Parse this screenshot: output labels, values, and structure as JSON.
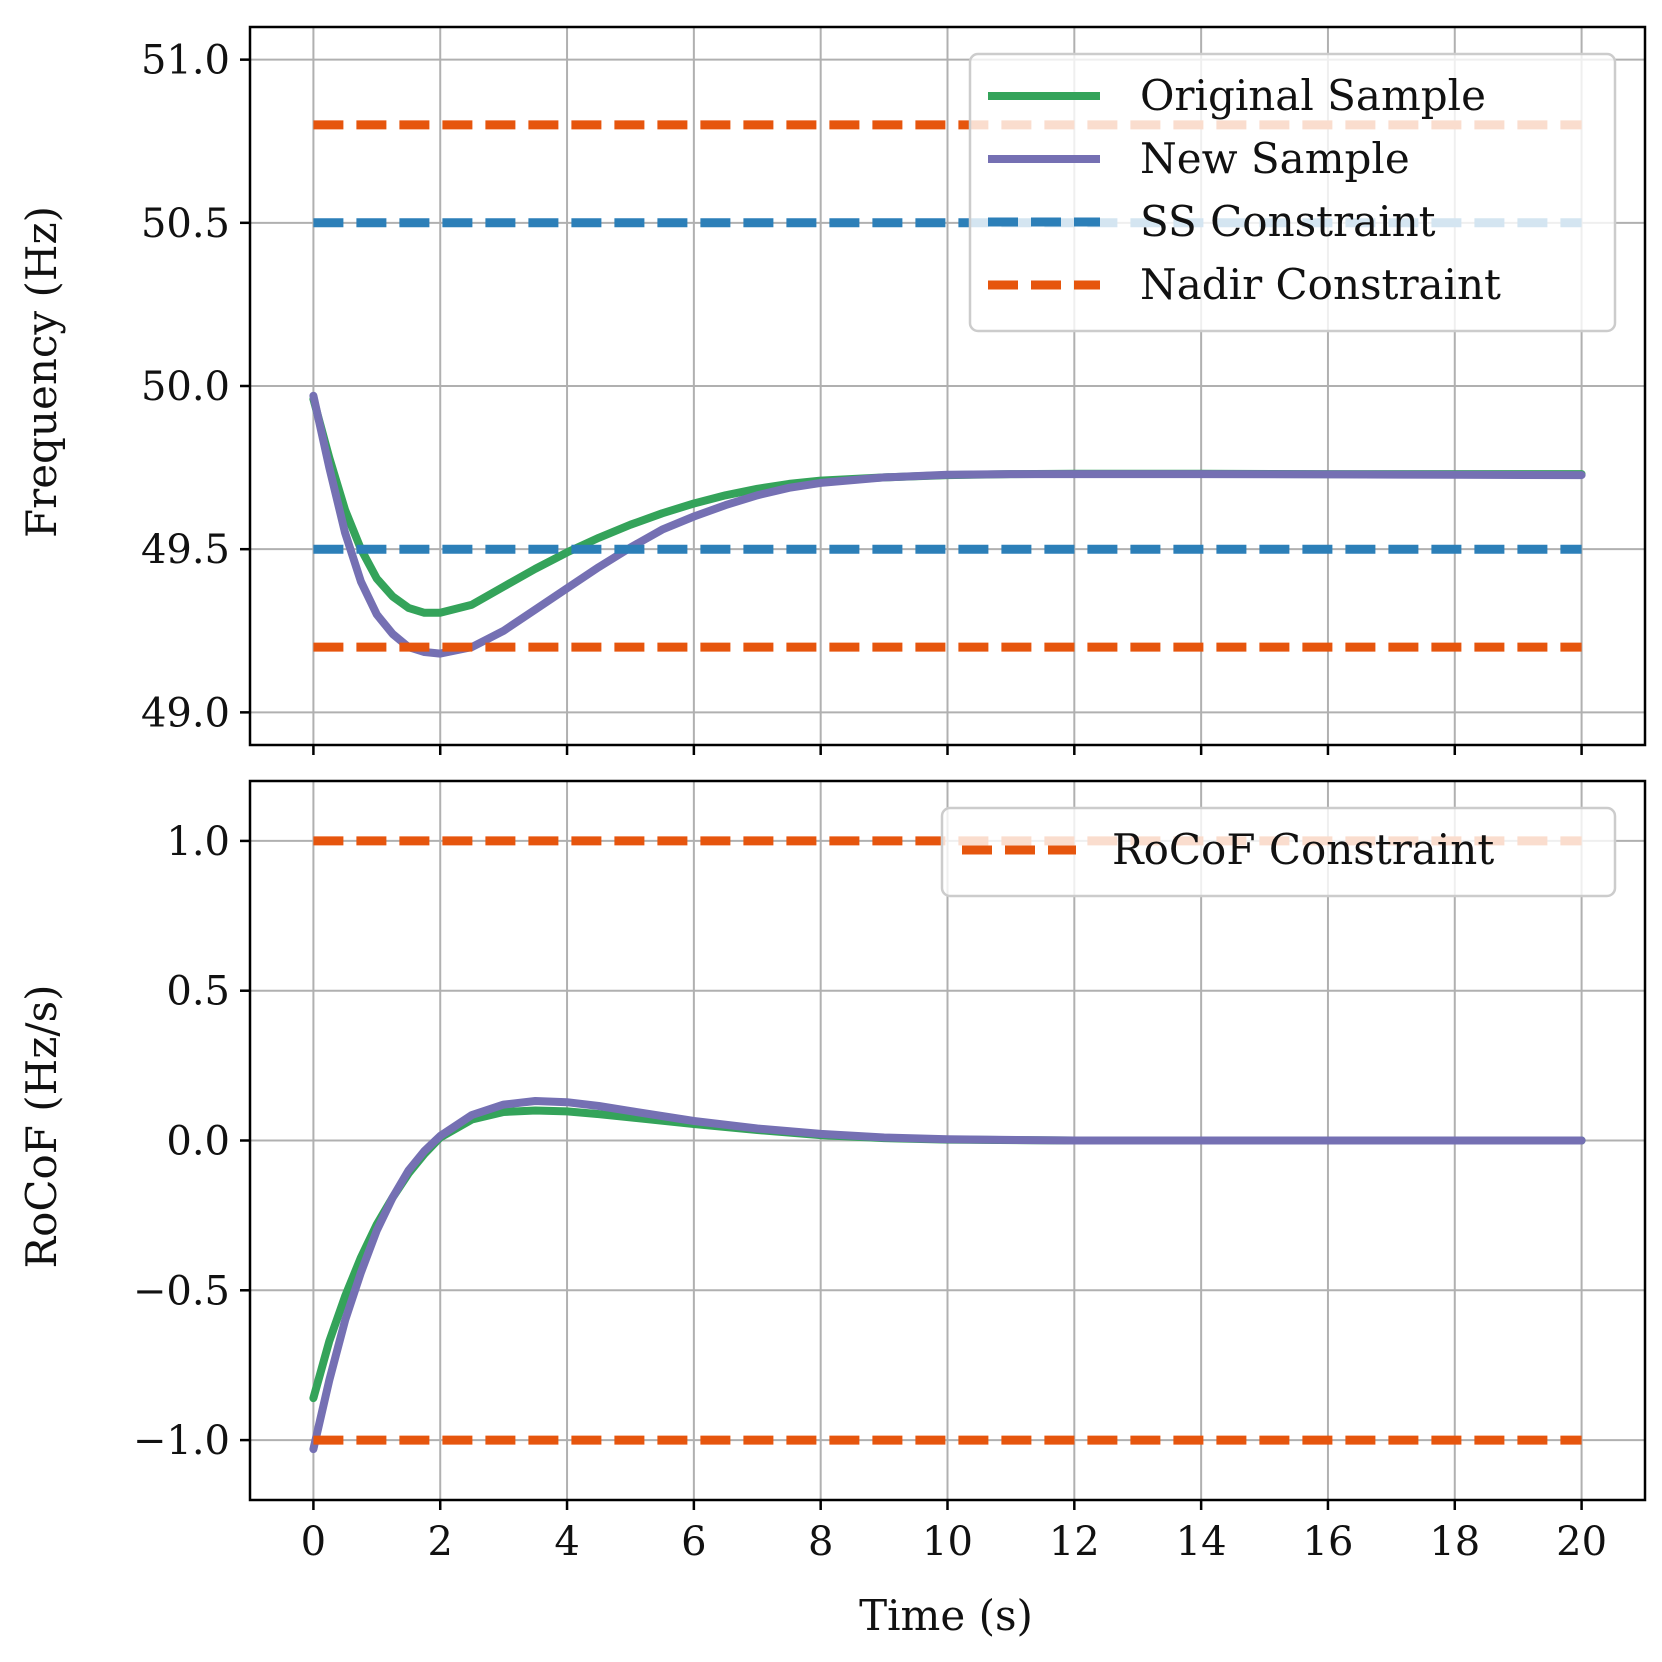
{
  "chart_data": [
    {
      "type": "line",
      "id": "frequency",
      "title": "",
      "xlabel": "",
      "ylabel": "Frequency (Hz)",
      "xlim": [
        -1,
        21
      ],
      "ylim": [
        48.9,
        51.1
      ],
      "xticks": [
        0,
        2,
        4,
        6,
        8,
        10,
        12,
        14,
        16,
        18,
        20
      ],
      "yticks": [
        49.0,
        49.5,
        50.0,
        50.5,
        51.0
      ],
      "ytick_labels": [
        "49.0",
        "49.5",
        "50.0",
        "50.5",
        "51.0"
      ],
      "grid": true,
      "legend_position": "top-right",
      "series": [
        {
          "name": "Original Sample",
          "style": "solid",
          "color": "#34a35a",
          "x": [
            0,
            0.25,
            0.5,
            0.75,
            1,
            1.25,
            1.5,
            1.75,
            2,
            2.5,
            3,
            3.5,
            4,
            4.5,
            5,
            5.5,
            6,
            6.5,
            7,
            7.5,
            8,
            9,
            10,
            11,
            12,
            14,
            16,
            18,
            20
          ],
          "y": [
            49.96,
            49.78,
            49.62,
            49.5,
            49.41,
            49.355,
            49.32,
            49.305,
            49.305,
            49.33,
            49.385,
            49.44,
            49.49,
            49.535,
            49.575,
            49.61,
            49.64,
            49.665,
            49.685,
            49.7,
            49.71,
            49.72,
            49.727,
            49.73,
            49.731,
            49.731,
            49.73,
            49.73,
            49.73
          ]
        },
        {
          "name": "New Sample",
          "style": "solid",
          "color": "#7570b3",
          "x": [
            0,
            0.25,
            0.5,
            0.75,
            1,
            1.25,
            1.5,
            1.75,
            2,
            2.5,
            3,
            3.5,
            4,
            4.5,
            5,
            5.5,
            6,
            6.5,
            7,
            7.5,
            8,
            9,
            10,
            11,
            12,
            14,
            16,
            18,
            20
          ],
          "y": [
            49.97,
            49.75,
            49.55,
            49.4,
            49.3,
            49.24,
            49.2,
            49.185,
            49.18,
            49.2,
            49.25,
            49.315,
            49.38,
            49.445,
            49.505,
            49.56,
            49.6,
            49.635,
            49.665,
            49.688,
            49.703,
            49.72,
            49.728,
            49.73,
            49.73,
            49.73,
            49.729,
            49.728,
            49.727
          ]
        },
        {
          "name": "SS Constraint",
          "style": "dashed",
          "color": "#2c7fb8",
          "x": [
            0,
            20
          ],
          "y": [
            49.5,
            49.5
          ],
          "y2": [
            50.5,
            50.5
          ]
        },
        {
          "name": "Nadir Constraint",
          "style": "dashed",
          "color": "#e6550d",
          "x": [
            0,
            20
          ],
          "y": [
            49.2,
            49.2
          ],
          "y2": [
            50.8,
            50.8
          ]
        }
      ]
    },
    {
      "type": "line",
      "id": "rocof",
      "title": "",
      "xlabel": "Time (s)",
      "ylabel": "RoCoF (Hz/s)",
      "xlim": [
        -1,
        21
      ],
      "ylim": [
        -1.2,
        1.2
      ],
      "xticks": [
        0,
        2,
        4,
        6,
        8,
        10,
        12,
        14,
        16,
        18,
        20
      ],
      "xtick_labels": [
        "0",
        "2",
        "4",
        "6",
        "8",
        "10",
        "12",
        "14",
        "16",
        "18",
        "20"
      ],
      "yticks": [
        -1.0,
        -0.5,
        0.0,
        0.5,
        1.0
      ],
      "ytick_labels": [
        "−1.0",
        "−0.5",
        "0.0",
        "0.5",
        "1.0"
      ],
      "grid": true,
      "legend_position": "top-right",
      "series": [
        {
          "name": "Original Sample",
          "style": "solid",
          "color": "#34a35a",
          "legend": false,
          "x": [
            0,
            0.25,
            0.5,
            0.75,
            1,
            1.25,
            1.5,
            1.75,
            2,
            2.5,
            3,
            3.5,
            4,
            4.5,
            5,
            6,
            7,
            8,
            9,
            10,
            12,
            14,
            16,
            18,
            20
          ],
          "y": [
            -0.86,
            -0.67,
            -0.52,
            -0.39,
            -0.28,
            -0.19,
            -0.11,
            -0.045,
            0.01,
            0.07,
            0.095,
            0.1,
            0.097,
            0.088,
            0.077,
            0.055,
            0.035,
            0.018,
            0.008,
            0.003,
            0.0,
            0.0,
            0.0,
            0.0,
            0.0
          ]
        },
        {
          "name": "New Sample",
          "style": "solid",
          "color": "#7570b3",
          "legend": false,
          "x": [
            0,
            0.25,
            0.5,
            0.75,
            1,
            1.25,
            1.5,
            1.75,
            2,
            2.5,
            3,
            3.5,
            4,
            4.5,
            5,
            6,
            7,
            8,
            9,
            10,
            12,
            14,
            16,
            18,
            20
          ],
          "y": [
            -1.03,
            -0.8,
            -0.6,
            -0.44,
            -0.3,
            -0.19,
            -0.1,
            -0.035,
            0.015,
            0.085,
            0.12,
            0.132,
            0.128,
            0.115,
            0.098,
            0.065,
            0.04,
            0.022,
            0.01,
            0.004,
            0.0,
            0.0,
            0.0,
            0.0,
            0.0
          ]
        },
        {
          "name": "RoCoF Constraint",
          "style": "dashed",
          "color": "#e6550d",
          "x": [
            0,
            20
          ],
          "y": [
            -1.0,
            -1.0
          ],
          "y2": [
            1.0,
            1.0
          ]
        }
      ]
    }
  ]
}
